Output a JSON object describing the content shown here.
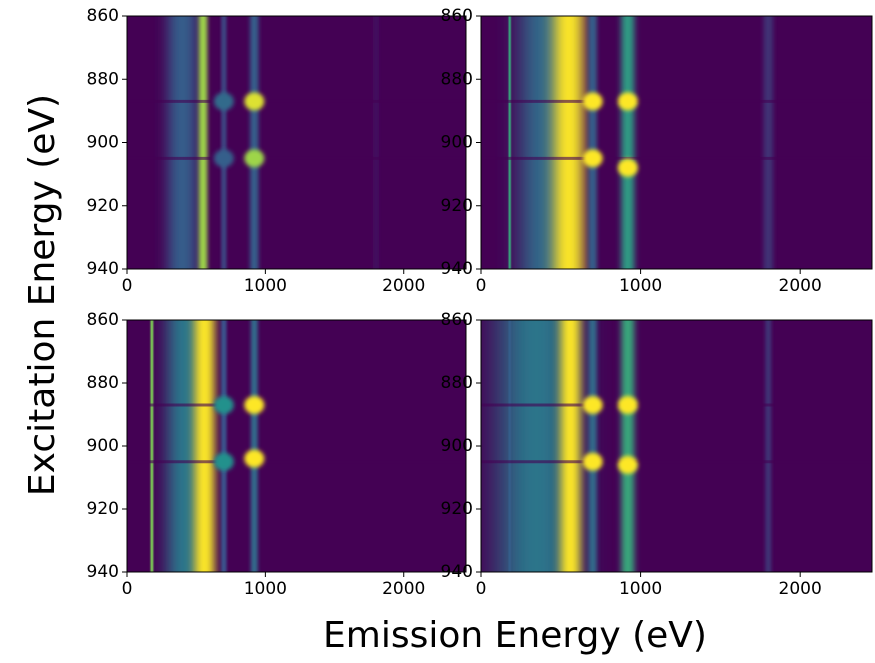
{
  "chart_data": [
    {
      "type": "heatmap",
      "xlim": [
        0,
        2450
      ],
      "ylim": [
        940,
        860
      ],
      "xticks": [
        0,
        1000,
        2000
      ],
      "yticks": [
        860,
        880,
        900,
        920,
        940
      ],
      "colormap": [
        "#440154",
        "#3b528b",
        "#21918c",
        "#5ec962",
        "#fde725"
      ],
      "clim": [
        0,
        1
      ],
      "bands": {
        "x": [
          400,
          550,
          700,
          920,
          1800
        ],
        "width": [
          200,
          60,
          40,
          60,
          40
        ],
        "values": [
          0.3,
          0.85,
          0.2,
          0.3,
          0.05
        ]
      },
      "spots": {
        "x": [
          920,
          920,
          700,
          700
        ],
        "y": [
          887,
          905,
          887,
          905
        ],
        "values": [
          0.95,
          0.85,
          0.35,
          0.3
        ]
      },
      "rows": [
        887,
        905
      ]
    },
    {
      "type": "heatmap",
      "xlim": [
        0,
        2450
      ],
      "ylim": [
        940,
        860
      ],
      "xticks": [
        0,
        1000,
        2000
      ],
      "yticks": [
        860,
        880,
        900,
        920,
        940
      ],
      "colormap": [
        "#440154",
        "#3b528b",
        "#21918c",
        "#5ec962",
        "#fde725"
      ],
      "clim": [
        0,
        1
      ],
      "bands": {
        "x": [
          400,
          180,
          550,
          700,
          920,
          1800
        ],
        "width": [
          300,
          15,
          180,
          50,
          80,
          60
        ],
        "values": [
          0.35,
          0.6,
          1.0,
          0.3,
          0.55,
          0.15
        ]
      },
      "spots": {
        "x": [
          920,
          920,
          700,
          700
        ],
        "y": [
          887,
          908,
          887,
          905
        ],
        "values": [
          1.0,
          1.0,
          1.0,
          1.0
        ]
      },
      "rows": [
        887,
        905
      ]
    },
    {
      "type": "heatmap",
      "xlim": [
        0,
        2450
      ],
      "ylim": [
        940,
        860
      ],
      "xticks": [
        0,
        1000,
        2000
      ],
      "yticks": [
        860,
        880,
        900,
        920,
        940
      ],
      "colormap": [
        "#440154",
        "#3b528b",
        "#21918c",
        "#5ec962",
        "#fde725"
      ],
      "clim": [
        0,
        1
      ],
      "bands": {
        "x": [
          420,
          180,
          560,
          700,
          920
        ],
        "width": [
          250,
          20,
          140,
          40,
          50
        ],
        "values": [
          0.4,
          0.8,
          1.0,
          0.25,
          0.35
        ]
      },
      "spots": {
        "x": [
          920,
          920,
          700,
          700
        ],
        "y": [
          887,
          904,
          887,
          905
        ],
        "values": [
          1.0,
          1.0,
          0.5,
          0.5
        ]
      },
      "rows": [
        887,
        905
      ]
    },
    {
      "type": "heatmap",
      "xlim": [
        0,
        2450
      ],
      "ylim": [
        940,
        860
      ],
      "xticks": [
        0,
        1000,
        2000
      ],
      "yticks": [
        860,
        880,
        900,
        920,
        940
      ],
      "colormap": [
        "#440154",
        "#3b528b",
        "#21918c",
        "#5ec962",
        "#fde725"
      ],
      "clim": [
        0,
        1
      ],
      "bands": {
        "x": [
          350,
          180,
          560,
          700,
          920,
          1800
        ],
        "width": [
          450,
          15,
          120,
          50,
          80,
          40
        ],
        "values": [
          0.4,
          0.3,
          1.0,
          0.35,
          0.6,
          0.15
        ]
      },
      "spots": {
        "x": [
          920,
          920,
          700,
          700
        ],
        "y": [
          887,
          906,
          887,
          905
        ],
        "values": [
          1.0,
          1.0,
          1.0,
          1.0
        ]
      },
      "rows": [
        887,
        905
      ]
    }
  ],
  "xlabel": "Emission Energy (eV)",
  "ylabel": "Excitation Energy (eV)"
}
